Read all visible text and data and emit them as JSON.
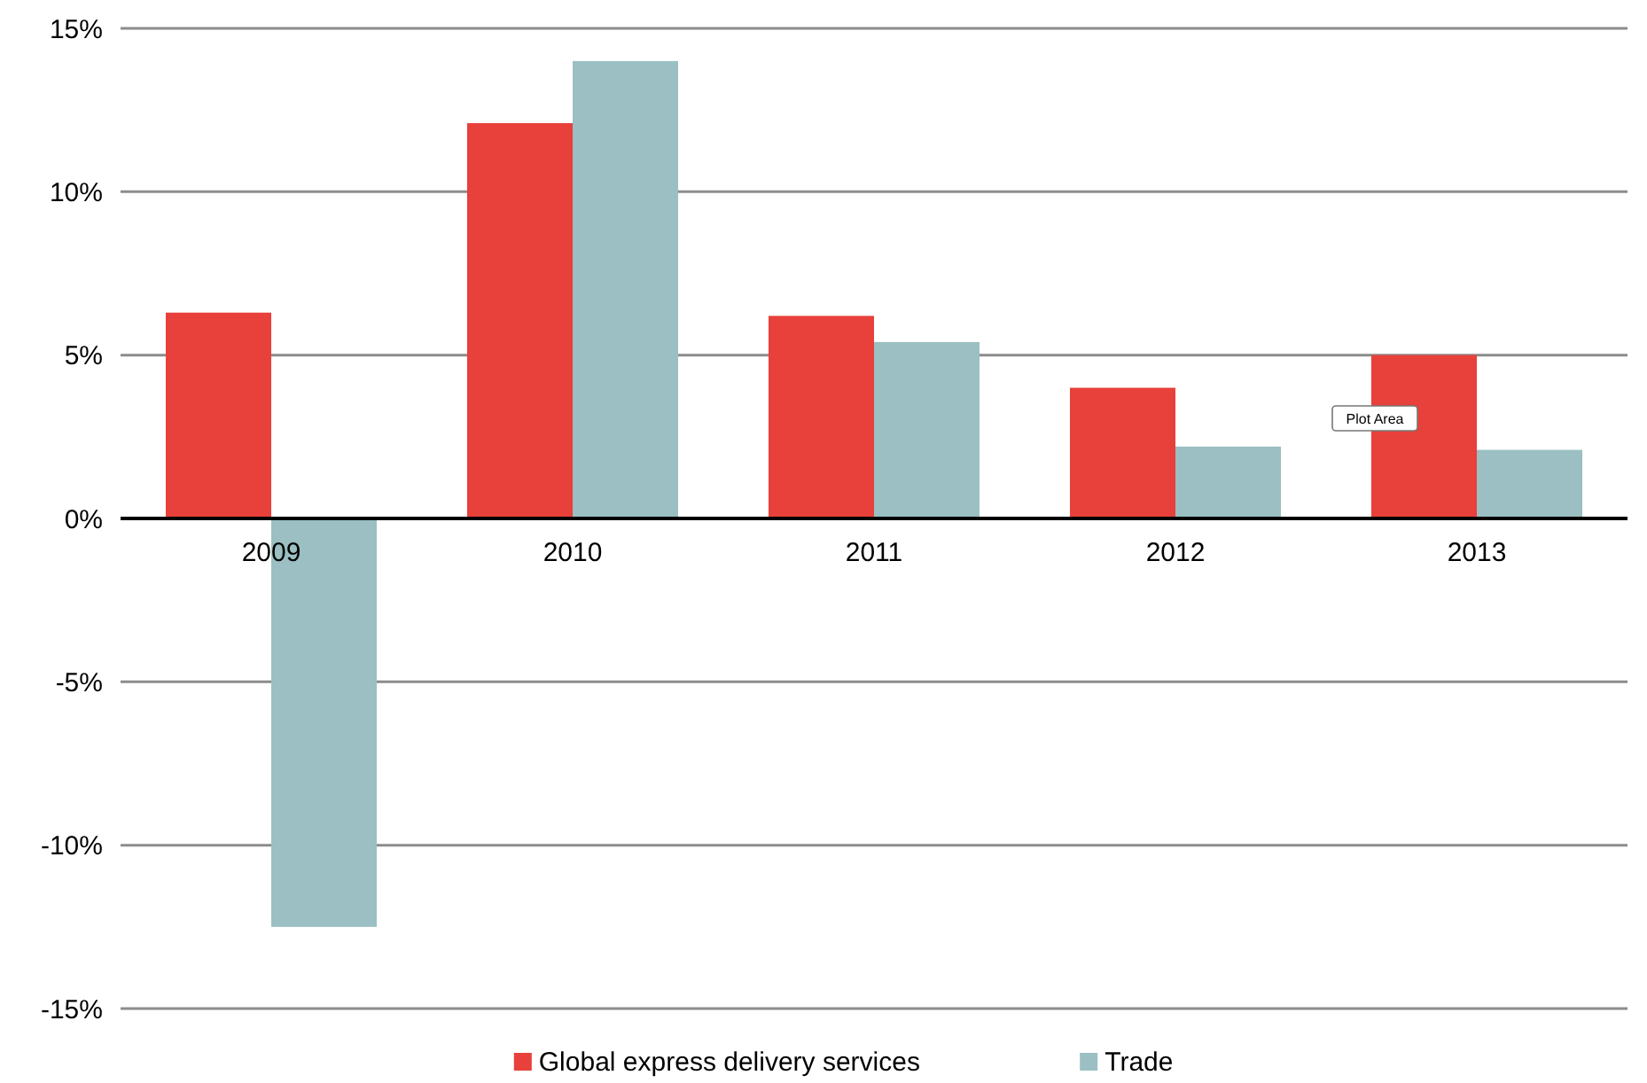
{
  "chart_data": {
    "type": "bar",
    "categories": [
      "2009",
      "2010",
      "2011",
      "2012",
      "2013"
    ],
    "series": [
      {
        "name": "Global express delivery services",
        "color": "#e8403a",
        "values": [
          6.3,
          12.1,
          6.2,
          4.0,
          5.0
        ]
      },
      {
        "name": "Trade",
        "color": "#9bbfc2",
        "values": [
          -12.5,
          14.0,
          5.4,
          2.2,
          2.1
        ]
      }
    ],
    "ylim": [
      -15,
      15
    ],
    "yticks": [
      {
        "value": -15,
        "label": "-15%"
      },
      {
        "value": -10,
        "label": "-10%"
      },
      {
        "value": -5,
        "label": "-5%"
      },
      {
        "value": 0,
        "label": "0%"
      },
      {
        "value": 5,
        "label": "5%"
      },
      {
        "value": 10,
        "label": "10%"
      },
      {
        "value": 15,
        "label": "15%"
      }
    ],
    "grid": "y",
    "legend": "bottom",
    "annotations": [
      "Plot Area"
    ]
  }
}
